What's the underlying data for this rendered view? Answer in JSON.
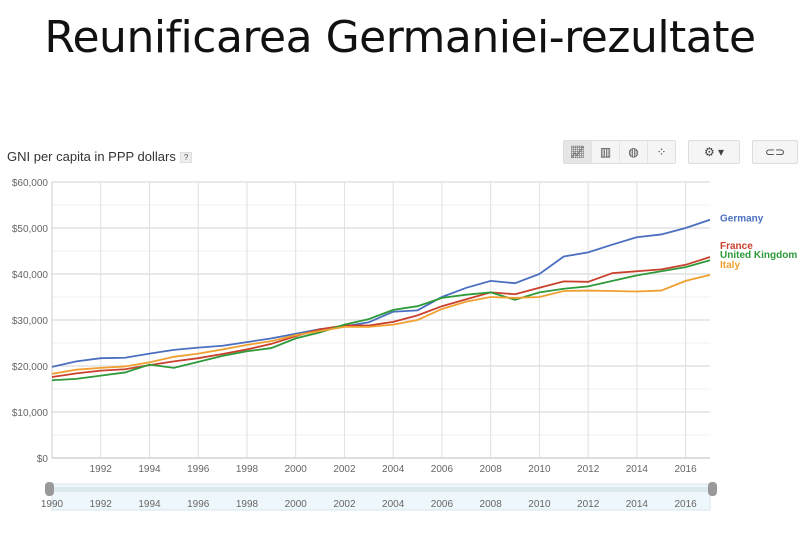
{
  "slide_title": "Reunificarea Germaniei-rezultate",
  "chart_title": "GNI per capita in PPP dollars",
  "help_label": "?",
  "toolbar": {
    "line_chart": "line-chart-icon",
    "bar_chart": "bar-chart-icon",
    "map": "globe-icon",
    "scatter": "scatter-icon",
    "settings": "gear-icon",
    "link": "link-icon"
  },
  "chart_data": {
    "type": "line",
    "title": "GNI per capita in PPP dollars",
    "xlabel": "",
    "ylabel": "",
    "x": [
      1990,
      1991,
      1992,
      1993,
      1994,
      1995,
      1996,
      1997,
      1998,
      1999,
      2000,
      2001,
      2002,
      2003,
      2004,
      2005,
      2006,
      2007,
      2008,
      2009,
      2010,
      2011,
      2012,
      2013,
      2014,
      2015,
      2016,
      2017
    ],
    "xlim": [
      1990,
      2017
    ],
    "ylim": [
      0,
      60000
    ],
    "yticks": [
      "$0",
      "$10,000",
      "$20,000",
      "$30,000",
      "$40,000",
      "$50,000",
      "$60,000"
    ],
    "xticks": [
      "1992",
      "1994",
      "1996",
      "1998",
      "2000",
      "2002",
      "2004",
      "2006",
      "2008",
      "2010",
      "2012",
      "2014",
      "2016"
    ],
    "range_ticks": [
      "1990",
      "1992",
      "1994",
      "1996",
      "1998",
      "2000",
      "2002",
      "2004",
      "2006",
      "2008",
      "2010",
      "2012",
      "2014",
      "2016"
    ],
    "legend": "right",
    "series": [
      {
        "name": "Germany",
        "color": "#4a6fbf",
        "values": [
          19800,
          21000,
          21700,
          21800,
          22700,
          23500,
          24000,
          24400,
          25200,
          26000,
          27000,
          28000,
          28600,
          29500,
          31800,
          32100,
          35000,
          37000,
          38500,
          38000,
          40000,
          43800,
          44700,
          46400,
          48000,
          48600,
          50000,
          51800
        ]
      },
      {
        "name": "France",
        "color": "#c9402c",
        "values": [
          17600,
          18400,
          19000,
          19300,
          20200,
          21000,
          21700,
          22600,
          23600,
          24800,
          26500,
          28000,
          28800,
          28800,
          29600,
          31000,
          33000,
          34500,
          36000,
          35600,
          37000,
          38400,
          38300,
          40200,
          40600,
          41000,
          42000,
          43700
        ]
      },
      {
        "name": "United Kingdom",
        "color": "#2f9a3a",
        "values": [
          16900,
          17200,
          17900,
          18600,
          20300,
          19600,
          20900,
          22200,
          23200,
          23900,
          26000,
          27300,
          29000,
          30200,
          32200,
          33000,
          34800,
          35500,
          36000,
          34400,
          36000,
          36800,
          37300,
          38500,
          39700,
          40600,
          41500,
          43000
        ]
      },
      {
        "name": "Italy",
        "color": "#f0a030",
        "values": [
          18300,
          19200,
          19600,
          19900,
          20800,
          22000,
          22700,
          23600,
          24600,
          25400,
          26700,
          27600,
          28500,
          28500,
          29000,
          30000,
          32400,
          34000,
          35000,
          34800,
          35000,
          36300,
          36400,
          36300,
          36200,
          36400,
          38500,
          39800
        ]
      }
    ]
  }
}
